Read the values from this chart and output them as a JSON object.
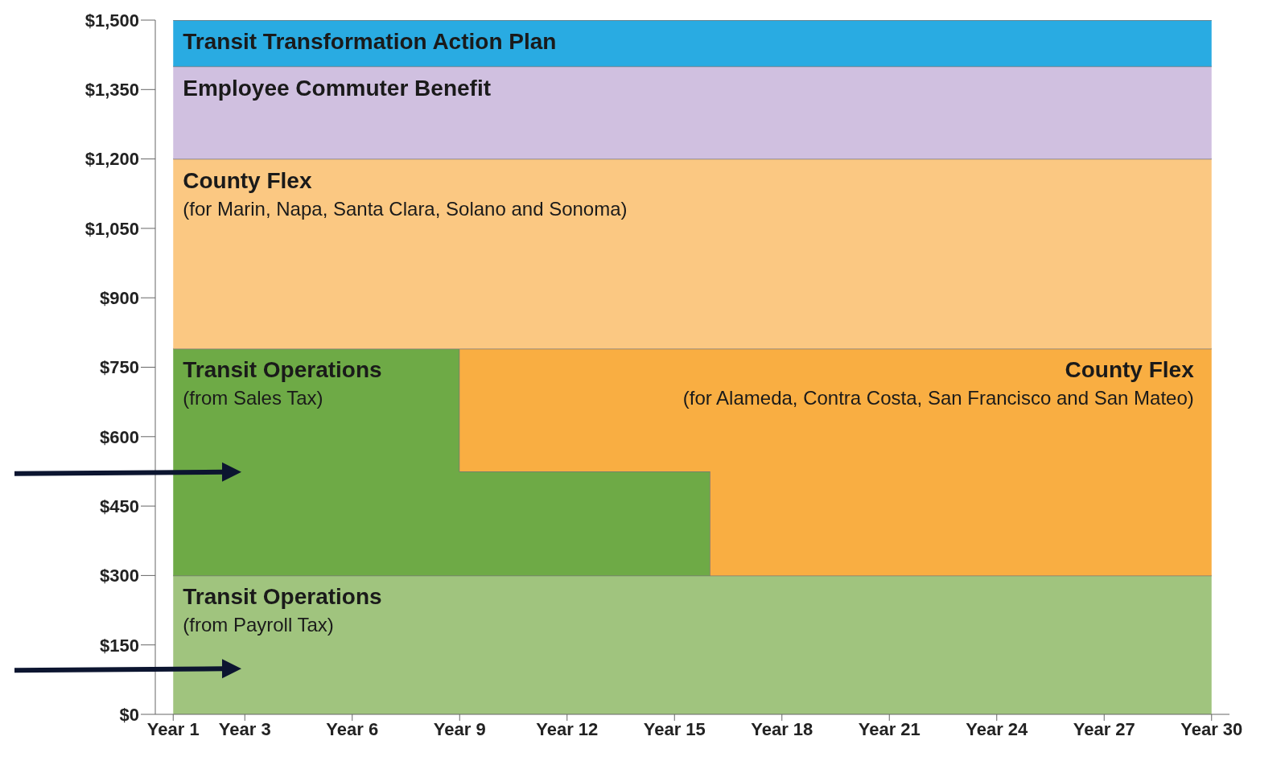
{
  "chart_data": {
    "type": "area",
    "stacked": true,
    "grid": false,
    "line_style": "solid",
    "categories": [
      "Year 1",
      null,
      "Year 3",
      null,
      null,
      "Year 6",
      null,
      null,
      "Year 9",
      null,
      null,
      "Year 12",
      null,
      null,
      "Year 15",
      null,
      null,
      "Year 18",
      null,
      null,
      "Year 21",
      null,
      null,
      "Year 24",
      null,
      null,
      "Year 27",
      null,
      null,
      "Year 30"
    ],
    "ylim": [
      0,
      1500
    ],
    "yticks": [
      {
        "value": 0,
        "label": "$0"
      },
      {
        "value": 150,
        "label": "$150"
      },
      {
        "value": 300,
        "label": "$300"
      },
      {
        "value": 450,
        "label": "$450"
      },
      {
        "value": 600,
        "label": "$600"
      },
      {
        "value": 750,
        "label": "$750"
      },
      {
        "value": 900,
        "label": "$900"
      },
      {
        "value": 1050,
        "label": "$1,050"
      },
      {
        "value": 1200,
        "label": "$1,200"
      },
      {
        "value": 1350,
        "label": "$1,350"
      },
      {
        "value": 1500,
        "label": "$1,500"
      }
    ],
    "series": [
      {
        "name": "Transit Operations (from Payroll Tax)",
        "color": "#a0c47e",
        "values": [
          300,
          300,
          300,
          300,
          300,
          300,
          300,
          300,
          300,
          300,
          300,
          300,
          300,
          300,
          300,
          300,
          300,
          300,
          300,
          300,
          300,
          300,
          300,
          300,
          300,
          300,
          300,
          300,
          300,
          300
        ]
      },
      {
        "name": "Transit Operations (from Sales Tax)",
        "color": "#6eaa46",
        "values": [
          490,
          490,
          490,
          490,
          490,
          490,
          490,
          490,
          225,
          225,
          225,
          225,
          225,
          225,
          225,
          0,
          null,
          null,
          null,
          null,
          null,
          null,
          null,
          null,
          null,
          null,
          null,
          null,
          null,
          null
        ]
      },
      {
        "name": "County Flex (for Alameda, Contra Costa, San Francisco and San Mateo)",
        "color": "#f9ae42",
        "values": [
          null,
          null,
          null,
          null,
          null,
          null,
          null,
          null,
          265,
          265,
          265,
          265,
          265,
          265,
          265,
          490,
          490,
          490,
          490,
          490,
          490,
          490,
          490,
          490,
          490,
          490,
          490,
          490,
          490,
          490
        ]
      },
      {
        "name": "County Flex (for Marin, Napa, Santa Clara, Solano and Sonoma)",
        "color": "#fbc882",
        "values": [
          410,
          410,
          410,
          410,
          410,
          410,
          410,
          410,
          410,
          410,
          410,
          410,
          410,
          410,
          410,
          410,
          410,
          410,
          410,
          410,
          410,
          410,
          410,
          410,
          410,
          410,
          410,
          410,
          410,
          410
        ]
      },
      {
        "name": "Employee Commuter Benefit",
        "color": "#d0c0e0",
        "values": [
          200,
          200,
          200,
          200,
          200,
          200,
          200,
          200,
          200,
          200,
          200,
          200,
          200,
          200,
          200,
          200,
          200,
          200,
          200,
          200,
          200,
          200,
          200,
          200,
          200,
          200,
          200,
          200,
          200,
          200
        ]
      },
      {
        "name": "Transit Transformation Action Plan",
        "color": "#29abe2",
        "values": [
          100,
          100,
          100,
          100,
          100,
          100,
          100,
          100,
          100,
          100,
          100,
          100,
          100,
          100,
          100,
          100,
          100,
          100,
          100,
          100,
          100,
          100,
          100,
          100,
          100,
          100,
          100,
          100,
          100,
          100
        ]
      }
    ]
  }
}
